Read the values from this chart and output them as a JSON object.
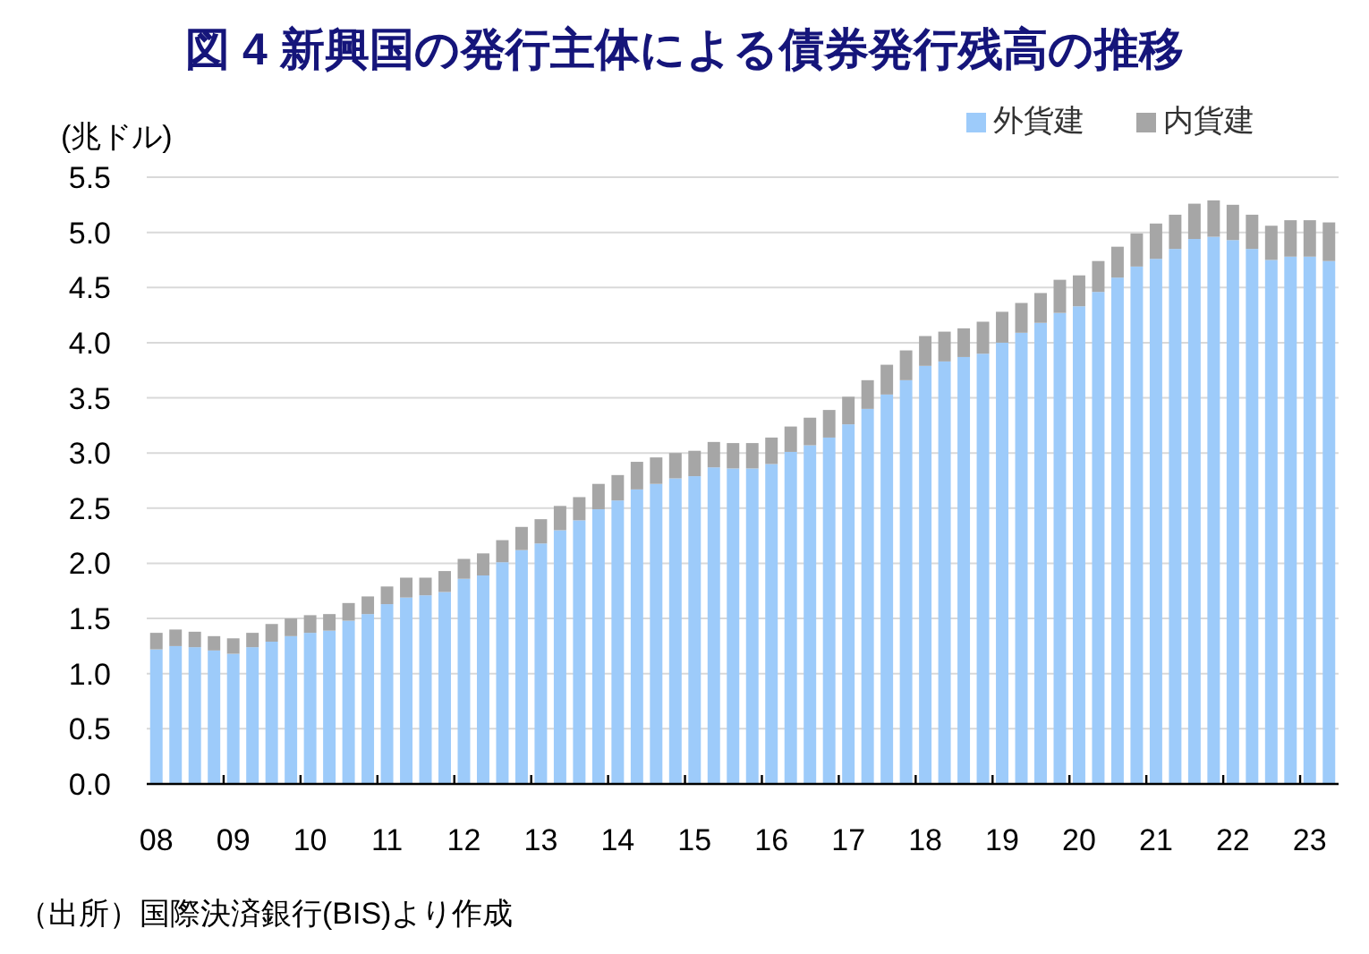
{
  "chart_data": {
    "type": "bar",
    "title": "図 4  新興国の発行主体による債券発行残高の推移",
    "ylabel": "(兆ドル)",
    "annotations": [
      "（出所）国際決済銀行(BIS)より作成"
    ],
    "categories": [
      "08",
      null,
      null,
      null,
      "09",
      null,
      null,
      null,
      "10",
      null,
      null,
      null,
      "11",
      null,
      null,
      null,
      "12",
      null,
      null,
      null,
      "13",
      null,
      null,
      null,
      "14",
      null,
      null,
      null,
      "15",
      null,
      null,
      null,
      "16",
      null,
      null,
      null,
      "17",
      null,
      null,
      null,
      "18",
      null,
      null,
      null,
      "19",
      null,
      null,
      null,
      "20",
      null,
      null,
      null,
      "21",
      null,
      null,
      null,
      "22",
      null,
      null,
      null,
      "23",
      null
    ],
    "stacked": true,
    "series": [
      {
        "name": "外貨建",
        "color": "#9dcbfa",
        "values": [
          1.22,
          1.25,
          1.24,
          1.21,
          1.18,
          1.24,
          1.29,
          1.34,
          1.37,
          1.39,
          1.48,
          1.54,
          1.63,
          1.69,
          1.71,
          1.74,
          1.86,
          1.89,
          2.01,
          2.12,
          2.18,
          2.3,
          2.39,
          2.49,
          2.57,
          2.67,
          2.72,
          2.77,
          2.79,
          2.87,
          2.86,
          2.86,
          2.9,
          3.01,
          3.07,
          3.14,
          3.26,
          3.4,
          3.53,
          3.66,
          3.79,
          3.83,
          3.87,
          3.9,
          4.0,
          4.09,
          4.18,
          4.27,
          4.33,
          4.46,
          4.59,
          4.69,
          4.76,
          4.85,
          4.94,
          4.96,
          4.93,
          4.85,
          4.75,
          4.78,
          4.78,
          4.74
        ]
      },
      {
        "name": "内貨建",
        "color": "#a6a6a6",
        "values": [
          0.15,
          0.15,
          0.14,
          0.13,
          0.14,
          0.13,
          0.16,
          0.16,
          0.16,
          0.15,
          0.16,
          0.16,
          0.16,
          0.18,
          0.16,
          0.19,
          0.18,
          0.2,
          0.2,
          0.21,
          0.22,
          0.22,
          0.21,
          0.23,
          0.23,
          0.25,
          0.24,
          0.23,
          0.23,
          0.23,
          0.23,
          0.23,
          0.24,
          0.23,
          0.25,
          0.25,
          0.25,
          0.26,
          0.27,
          0.27,
          0.27,
          0.27,
          0.26,
          0.29,
          0.28,
          0.27,
          0.27,
          0.3,
          0.28,
          0.28,
          0.28,
          0.3,
          0.32,
          0.31,
          0.32,
          0.33,
          0.32,
          0.31,
          0.31,
          0.33,
          0.33,
          0.35
        ]
      }
    ],
    "ylim": [
      0,
      5.5
    ],
    "yticks": [
      {
        "value": 0,
        "label": "0.0"
      },
      {
        "value": 0.5,
        "label": "0.5"
      },
      {
        "value": 1,
        "label": "1.0"
      },
      {
        "value": 1.5,
        "label": "1.5"
      },
      {
        "value": 2,
        "label": "2.0"
      },
      {
        "value": 2.5,
        "label": "2.5"
      },
      {
        "value": 3,
        "label": "3.0"
      },
      {
        "value": 3.5,
        "label": "3.5"
      },
      {
        "value": 4,
        "label": "4.0"
      },
      {
        "value": 4.5,
        "label": "4.5"
      },
      {
        "value": 5,
        "label": "5.0"
      },
      {
        "value": 5.5,
        "label": "5.5"
      }
    ],
    "grid": "y",
    "legend": "top right"
  }
}
